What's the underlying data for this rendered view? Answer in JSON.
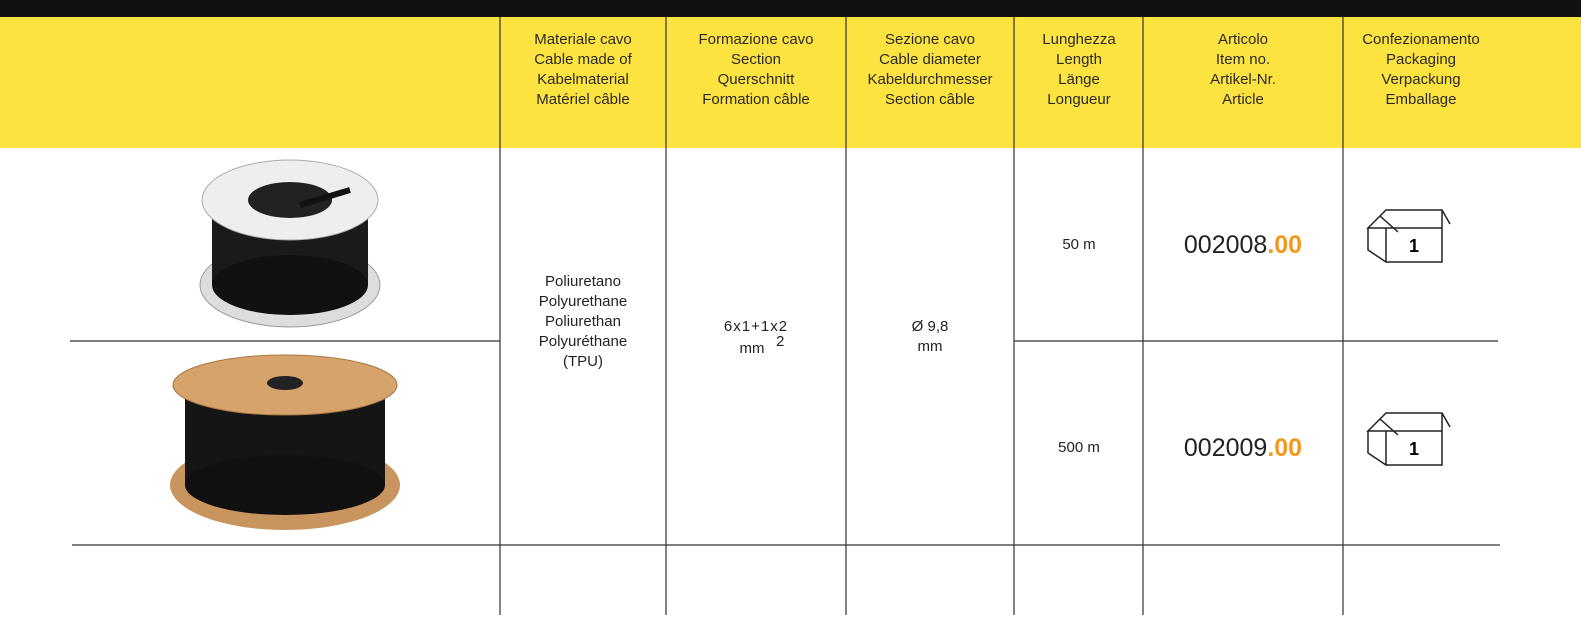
{
  "table": {
    "headers": [
      [
        "Materiale cavo",
        "Cable made of",
        "Kabelmaterial",
        "Matériel câble"
      ],
      [
        "Formazione cavo",
        "Section",
        "Querschnitt",
        "Formation câble"
      ],
      [
        "Sezione cavo",
        "Cable diameter",
        "Kabeldurchmesser",
        "Section câble"
      ],
      [
        "Lunghezza",
        "Length",
        "Länge",
        "Longueur"
      ],
      [
        "Articolo",
        "Item no.",
        "Artikel-Nr.",
        "Article"
      ],
      [
        "Confezionamento",
        "Packaging",
        "Verpackung",
        "Emballage"
      ]
    ],
    "material": [
      "Poliuretano",
      "Polyurethane",
      "Poliurethan",
      "Polyuréthane",
      "(TPU)"
    ],
    "formation": {
      "value": "6x1+1x2",
      "unit": "mm",
      "exponent": "2"
    },
    "diameter": [
      "Ø 9,8",
      "mm"
    ],
    "rows": [
      {
        "length": "50 m",
        "item": "002008",
        "suffix": ".00",
        "packaging": "1"
      },
      {
        "length": "500 m",
        "item": "002009",
        "suffix": ".00",
        "packaging": "1"
      }
    ]
  }
}
